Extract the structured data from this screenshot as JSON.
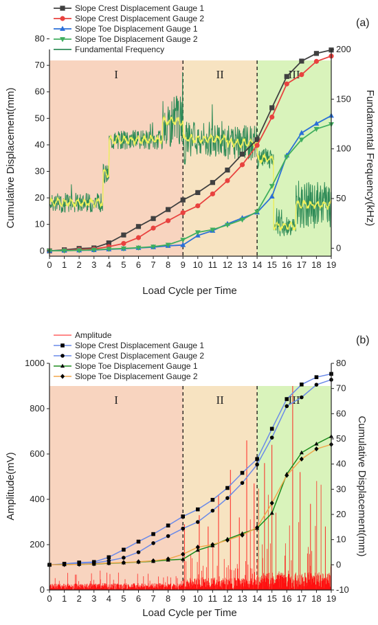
{
  "chart_data": [
    {
      "panel_label": "(a)",
      "type": "line",
      "xlabel": "Load Cycle per Time",
      "ylabel": "Cumulative Displacement(mm)",
      "y2label": "Fundamental Frequency(kHz)",
      "xlim": [
        0,
        19
      ],
      "ylim": [
        -2,
        76
      ],
      "y2lim": [
        -8,
        200
      ],
      "xticks": [
        0,
        1,
        2,
        3,
        4,
        5,
        6,
        7,
        8,
        9,
        10,
        11,
        12,
        13,
        14,
        15,
        16,
        17,
        18,
        19
      ],
      "yticks": [
        0,
        10,
        20,
        30,
        40,
        50,
        60,
        70,
        80
      ],
      "y2ticks": [
        0,
        50,
        100,
        150,
        200
      ],
      "stages": [
        {
          "label": "I",
          "from": 0,
          "to": 9,
          "color": "#f8d4bf"
        },
        {
          "label": "II",
          "from": 9,
          "to": 14,
          "color": "#f7e3c1"
        },
        {
          "label": "III",
          "from": 14,
          "to": 19,
          "color": "#d9f3bb"
        }
      ],
      "stage_dividers": [
        9,
        14
      ],
      "x": [
        0,
        1,
        2,
        3,
        4,
        5,
        6,
        7,
        8,
        9,
        10,
        11,
        12,
        13,
        14,
        15,
        16,
        17,
        18,
        19
      ],
      "series": [
        {
          "name": "Slope Crest Displacement Gauge 1",
          "color": "#404040",
          "marker": "square",
          "values": [
            0,
            0.4,
            0.9,
            1.1,
            3.0,
            6.0,
            9.2,
            12.2,
            15.6,
            19.2,
            22.0,
            25.8,
            30.5,
            36.5,
            42.0,
            54.0,
            65.8,
            71.6,
            74.5,
            75.8
          ]
        },
        {
          "name": "Slope Crest Displacement Gauge 2",
          "color": "#e8423f",
          "marker": "circle",
          "values": [
            0,
            0.2,
            0.5,
            0.7,
            1.6,
            2.8,
            5.0,
            8.6,
            11.4,
            14.4,
            17.0,
            21.5,
            26.5,
            32.5,
            39.8,
            50.5,
            63.0,
            66.5,
            71.5,
            73.5
          ]
        },
        {
          "name": "Slope Toe Displacement Gauge 1",
          "color": "#2a6fd8",
          "marker": "triangle-up",
          "values": [
            0,
            0.1,
            0.2,
            0.3,
            0.6,
            0.8,
            1.1,
            1.4,
            1.9,
            2.2,
            5.8,
            7.6,
            10.2,
            12.4,
            14.5,
            20.5,
            36.0,
            44.5,
            48.0,
            51.0
          ]
        },
        {
          "name": "Slope Toe Displacement Gauge 2",
          "color": "#3fae5e",
          "marker": "triangle-down",
          "values": [
            0,
            0.1,
            0.2,
            0.4,
            0.7,
            0.9,
            1.2,
            1.6,
            2.3,
            4.2,
            7.0,
            8.0,
            9.8,
            11.8,
            14.8,
            24.5,
            35.5,
            42.0,
            46.0,
            47.8
          ]
        }
      ],
      "frequency_series": {
        "name": "Fundamental Frequency",
        "axis": "y2",
        "color": "#2e8b57",
        "smooth_color": "#f1f15a",
        "levels": [
          {
            "from": 0,
            "to": 3.6,
            "value": 46
          },
          {
            "from": 3.6,
            "to": 4.0,
            "value": 75
          },
          {
            "from": 4.0,
            "to": 7.6,
            "value": 109
          },
          {
            "from": 7.6,
            "to": 9.0,
            "value": 128
          },
          {
            "from": 9.0,
            "to": 12.0,
            "value": 110
          },
          {
            "from": 12.0,
            "to": 14.0,
            "value": 106
          },
          {
            "from": 14.0,
            "to": 15.1,
            "value": 90
          },
          {
            "from": 15.1,
            "to": 16.6,
            "value": 22
          },
          {
            "from": 16.6,
            "to": 19.0,
            "value": 44
          }
        ]
      }
    },
    {
      "panel_label": "(b)",
      "type": "line",
      "xlabel": "Load Cycle per Time",
      "ylabel": "Amplitude(mV)",
      "y2label": "Cumulative Displacement(mm)",
      "xlim": [
        0,
        19
      ],
      "ylim": [
        0,
        1000
      ],
      "y2lim": [
        -10,
        80
      ],
      "xticks": [
        0,
        1,
        2,
        3,
        4,
        5,
        6,
        7,
        8,
        9,
        10,
        11,
        12,
        13,
        14,
        15,
        16,
        17,
        18,
        19
      ],
      "yticks": [
        0,
        200,
        400,
        600,
        800,
        1000
      ],
      "y2ticks": [
        -10,
        0,
        10,
        20,
        30,
        40,
        50,
        60,
        70,
        80
      ],
      "stages": [
        {
          "label": "I",
          "from": 0,
          "to": 9,
          "color": "#f8d4bf"
        },
        {
          "label": "II",
          "from": 9,
          "to": 14,
          "color": "#f7e3c1"
        },
        {
          "label": "III",
          "from": 14,
          "to": 19,
          "color": "#d9f3bb"
        }
      ],
      "stage_dividers": [
        9,
        14
      ],
      "amplitude_series": {
        "name": "Amplitude",
        "axis": "y",
        "color": "#ff1010",
        "baseline_mV": 30,
        "spikes": [
          {
            "x": 9.1,
            "mV": 290
          },
          {
            "x": 10.1,
            "mV": 330
          },
          {
            "x": 10.7,
            "mV": 280
          },
          {
            "x": 11.4,
            "mV": 420
          },
          {
            "x": 12.2,
            "mV": 530
          },
          {
            "x": 12.8,
            "mV": 320
          },
          {
            "x": 13.3,
            "mV": 660
          },
          {
            "x": 13.8,
            "mV": 470
          },
          {
            "x": 14.5,
            "mV": 560
          },
          {
            "x": 15.0,
            "mV": 640
          },
          {
            "x": 16.4,
            "mV": 900
          },
          {
            "x": 16.9,
            "mV": 520
          },
          {
            "x": 17.6,
            "mV": 380
          },
          {
            "x": 18.6,
            "mV": 280
          }
        ]
      },
      "x": [
        0,
        1,
        2,
        3,
        4,
        5,
        6,
        7,
        8,
        9,
        10,
        11,
        12,
        13,
        14,
        15,
        16,
        17,
        18,
        19
      ],
      "series": [
        {
          "name": "Slope Crest Displacement Gauge 1",
          "color": "#6a8ae8",
          "marker": "square",
          "values": [
            0,
            0.4,
            0.9,
            1.1,
            3.0,
            6.0,
            9.2,
            12.2,
            15.6,
            19.2,
            22.0,
            25.8,
            30.5,
            36.5,
            42.0,
            54.0,
            65.8,
            71.6,
            74.5,
            75.8
          ]
        },
        {
          "name": "Slope Crest Displacement Gauge 2",
          "color": "#6a8ae8",
          "marker": "circle",
          "values": [
            0,
            0.2,
            0.5,
            0.7,
            1.6,
            2.8,
            5.0,
            8.6,
            11.4,
            14.4,
            17.0,
            21.5,
            26.5,
            32.5,
            39.8,
            50.5,
            63.0,
            66.5,
            71.5,
            73.5
          ]
        },
        {
          "name": "Slope Toe Displacement Gauge 1",
          "color": "#1b8a1b",
          "marker": "triangle-up",
          "values": [
            0,
            0.1,
            0.2,
            0.3,
            0.6,
            0.8,
            1.1,
            1.4,
            1.9,
            2.2,
            5.8,
            7.6,
            10.2,
            12.4,
            14.5,
            20.5,
            36.0,
            44.5,
            48.0,
            51.0
          ]
        },
        {
          "name": "Slope Toe Displacement Gauge 2",
          "color": "#f0a64a",
          "marker": "diamond",
          "values": [
            0,
            0.1,
            0.2,
            0.4,
            0.7,
            0.9,
            1.2,
            1.6,
            2.3,
            4.2,
            7.0,
            8.0,
            9.8,
            11.8,
            14.8,
            24.5,
            35.5,
            42.0,
            46.0,
            47.8
          ]
        }
      ]
    }
  ]
}
